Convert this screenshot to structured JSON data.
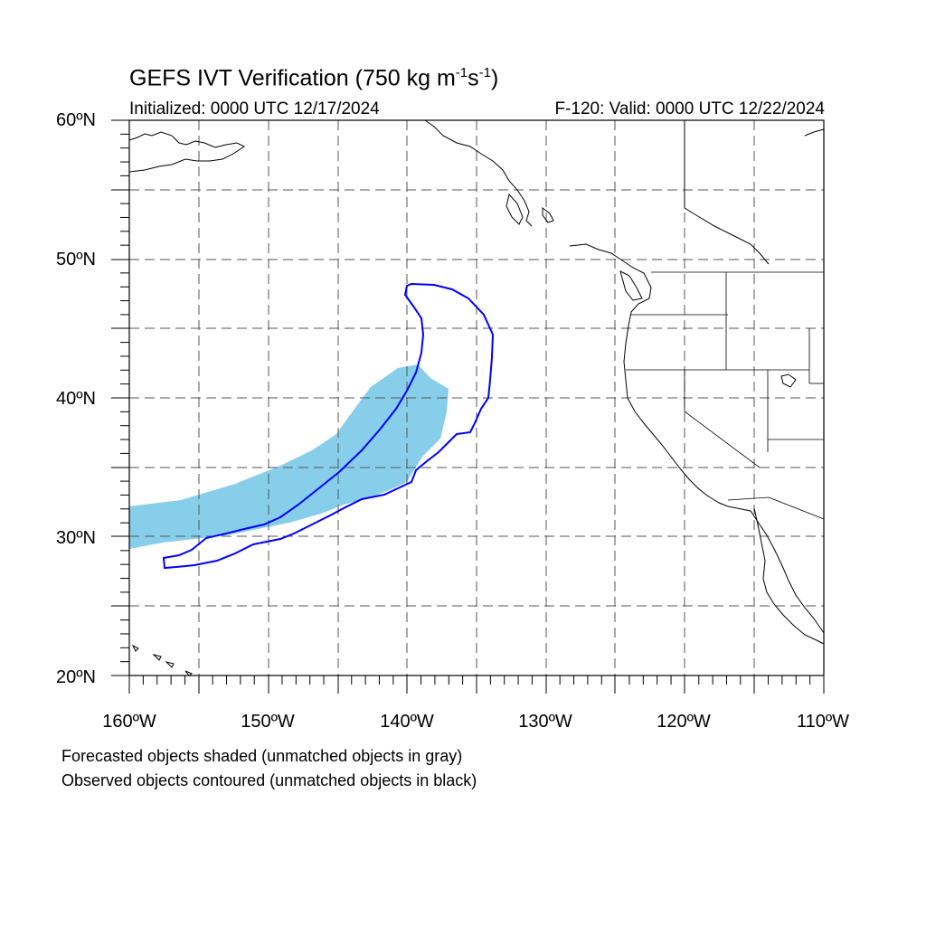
{
  "title": {
    "prefix": "GEFS IVT Verification (750 kg m",
    "exp1": "-1",
    "mid": "s",
    "exp2": "-1",
    "suffix": ")"
  },
  "init_text": "Initialized: 0000 UTC 12/17/2024",
  "valid_text": "F-120: Valid: 0000 UTC 12/22/2024",
  "lat_labels": [
    "60ºN",
    "50ºN",
    "40ºN",
    "30ºN",
    "20ºN"
  ],
  "lon_labels": [
    "160ºW",
    "150ºW",
    "140ºW",
    "130ºW",
    "120ºW",
    "110ºW"
  ],
  "notes": [
    "Forecasted objects shaded (unmatched objects in gray)",
    "Observed objects contoured (unmatched objects in black)"
  ],
  "map": {
    "lon_range": [
      -160,
      -110
    ],
    "lat_range": [
      20,
      60
    ],
    "gridlines": "dashed every 5 degrees",
    "forecast_fill_color": "#87ceeb",
    "observed_contour_color": "#0000ff"
  }
}
